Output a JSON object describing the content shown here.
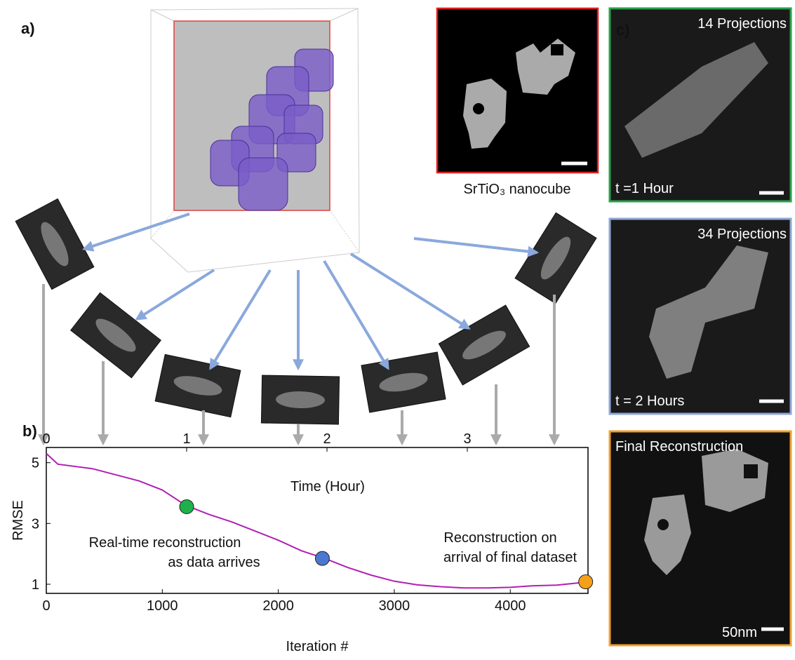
{
  "panel_labels": [
    "a)",
    "b)",
    "c)"
  ],
  "red_panel": {
    "caption": "SrTiO₃ nanocube"
  },
  "c_panels": [
    {
      "top": "14 Projections",
      "bottom": "t =1 Hour",
      "color": "#2aa04a"
    },
    {
      "top": "34 Projections",
      "bottom": "t = 2 Hours",
      "color": "#8ea6d4"
    },
    {
      "top": "Final Reconstruction",
      "bottom": "50nm",
      "color": "#f0a030"
    }
  ],
  "chart_data": {
    "type": "line",
    "xlabel": "Iteration #",
    "ylabel": "RMSE",
    "x2label": "Time (Hour)",
    "x": [
      0,
      100,
      400,
      800,
      1000,
      1200,
      1400,
      1600,
      1800,
      2000,
      2200,
      2400,
      2600,
      2800,
      3000,
      3200,
      3400,
      3600,
      3800,
      4000,
      4200,
      4400,
      4600,
      4660
    ],
    "series": [
      {
        "color": "#b21fb4",
        "values": [
          5.3,
          4.95,
          4.8,
          4.4,
          4.1,
          3.6,
          3.3,
          3.05,
          2.75,
          2.45,
          2.1,
          1.85,
          1.55,
          1.3,
          1.1,
          0.98,
          0.92,
          0.88,
          0.88,
          0.9,
          0.95,
          0.97,
          1.05,
          1.08
        ]
      }
    ],
    "markers": [
      {
        "x": 1210,
        "y": 3.55,
        "color": "#1fb04a"
      },
      {
        "x": 2380,
        "y": 1.85,
        "color": "#4a78d0"
      },
      {
        "x": 4650,
        "y": 1.08,
        "color": "#f5a01a"
      }
    ],
    "annotations": [
      [
        "Real-time reconstruction",
        "as data arrives"
      ],
      [
        "Reconstruction on",
        "arrival of final dataset"
      ]
    ],
    "xlim": [
      0,
      4670
    ],
    "xticks": [
      0,
      1000,
      2000,
      3000,
      4000
    ],
    "x2lim": [
      0,
      3.86
    ],
    "x2ticks": [
      0,
      1,
      2,
      3
    ],
    "ylim": [
      0.7,
      5.5
    ],
    "yticks": [
      1,
      3,
      5
    ]
  }
}
